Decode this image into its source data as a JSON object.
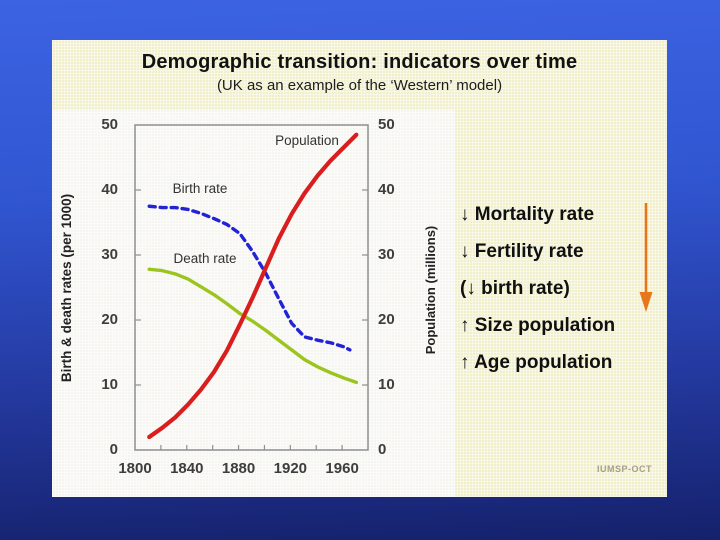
{
  "slide": {
    "title": "Demographic transition: indicators over time",
    "subtitle": "(UK as an example of the ‘Western’ model)",
    "credit": "IUMSP-OCT"
  },
  "right_panel": {
    "items": [
      {
        "text": "↓ Mortality rate"
      },
      {
        "text": "↓ Fertility rate"
      },
      {
        "text": "(↓ birth rate)"
      },
      {
        "text": "↑ Size population"
      },
      {
        "text": "↑ Age population"
      }
    ],
    "arrow_color": "#e8761c"
  },
  "chart_data": {
    "type": "line",
    "title": "Demographic transition: indicators over time",
    "x_range": [
      1800,
      1980
    ],
    "x_minor_ticks": [
      1820,
      1840,
      1860,
      1880,
      1900,
      1920,
      1940,
      1960
    ],
    "x_tick_labels": [
      1800,
      1840,
      1880,
      1920,
      1960
    ],
    "y_left": {
      "label": "Birth & death rates (per 1000)",
      "range": [
        0,
        50
      ],
      "ticks": [
        0,
        10,
        20,
        30,
        40,
        50
      ]
    },
    "y_right": {
      "label": "Population (millions)",
      "range": [
        0,
        50
      ],
      "ticks": [
        0,
        10,
        20,
        30,
        40,
        50
      ]
    },
    "frame_color": "#8f8f8f",
    "grid": false,
    "series": [
      {
        "id": "population",
        "name": "Population",
        "color": "#d81e1e",
        "style": "solid",
        "width": 4.2,
        "axis": "right",
        "points": [
          [
            1811,
            2
          ],
          [
            1821,
            3.4
          ],
          [
            1831,
            5
          ],
          [
            1841,
            7
          ],
          [
            1851,
            9.3
          ],
          [
            1861,
            12
          ],
          [
            1871,
            15.3
          ],
          [
            1881,
            19.3
          ],
          [
            1891,
            23.5
          ],
          [
            1901,
            28
          ],
          [
            1911,
            32.5
          ],
          [
            1921,
            36.3
          ],
          [
            1931,
            39.5
          ],
          [
            1941,
            42.2
          ],
          [
            1951,
            44.5
          ],
          [
            1961,
            46.5
          ],
          [
            1971,
            48.5
          ]
        ]
      },
      {
        "id": "birth-rate",
        "name": "Birth rate",
        "color": "#2323d6",
        "style": "dashed",
        "width": 3.4,
        "axis": "left",
        "points": [
          [
            1811,
            37.5
          ],
          [
            1821,
            37.3
          ],
          [
            1831,
            37.3
          ],
          [
            1841,
            37
          ],
          [
            1851,
            36.4
          ],
          [
            1861,
            35.6
          ],
          [
            1871,
            34.7
          ],
          [
            1881,
            33.3
          ],
          [
            1891,
            30.5
          ],
          [
            1901,
            27.2
          ],
          [
            1911,
            23.3
          ],
          [
            1921,
            19.5
          ],
          [
            1931,
            17.4
          ],
          [
            1941,
            16.9
          ],
          [
            1951,
            16.5
          ],
          [
            1961,
            15.9
          ],
          [
            1966,
            15.4
          ]
        ]
      },
      {
        "id": "death-rate",
        "name": "Death rate",
        "color": "#9cc41e",
        "style": "solid",
        "width": 3.4,
        "axis": "left",
        "points": [
          [
            1811,
            27.8
          ],
          [
            1821,
            27.6
          ],
          [
            1831,
            27.1
          ],
          [
            1841,
            26.3
          ],
          [
            1851,
            25.1
          ],
          [
            1861,
            23.9
          ],
          [
            1871,
            22.5
          ],
          [
            1881,
            21
          ],
          [
            1891,
            19.8
          ],
          [
            1901,
            18.4
          ],
          [
            1911,
            16.9
          ],
          [
            1921,
            15.4
          ],
          [
            1931,
            13.9
          ],
          [
            1941,
            12.8
          ],
          [
            1951,
            11.9
          ],
          [
            1961,
            11.1
          ],
          [
            1971,
            10.4
          ]
        ]
      }
    ]
  }
}
